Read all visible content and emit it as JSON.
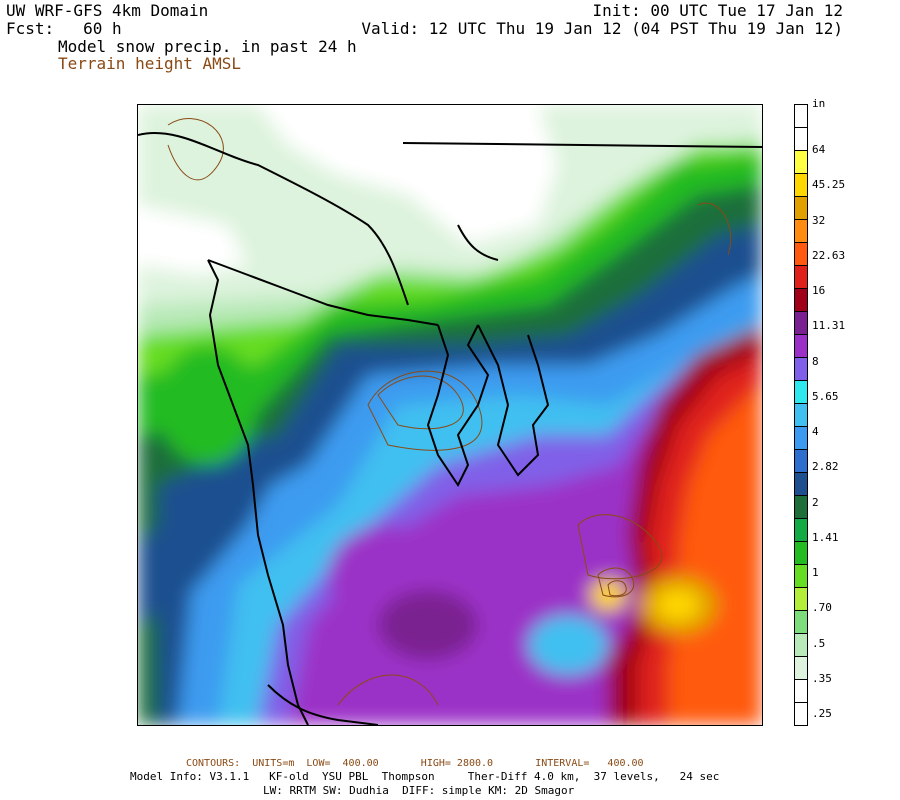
{
  "header": {
    "title": "UW WRF-GFS 4km Domain",
    "fcst": "Fcst:   60 h",
    "product": "Model snow precip. in past 24 h",
    "terrain": "Terrain height AMSL",
    "init": "Init: 00 UTC Tue 17 Jan 12",
    "valid": "Valid: 12 UTC Thu 19 Jan 12 (04 PST Thu 19 Jan 12)"
  },
  "colorbar": {
    "unit": "in",
    "labels": [
      ".25",
      ".35",
      ".5",
      ".70",
      "1",
      "1.41",
      "2",
      "2.82",
      "4",
      "5.65",
      "8",
      "11.31",
      "16",
      "22.63",
      "32",
      "45.25",
      "64"
    ],
    "colors": [
      "#ffffff",
      "#ffffff",
      "#ddf3dd",
      "#b8e9b8",
      "#7ddd7d",
      "#b3ee3a",
      "#66dd22",
      "#22bb22",
      "#11aa44",
      "#1e6e3a",
      "#1e4f8f",
      "#2d6ecf",
      "#3c9bf0",
      "#40c0f0",
      "#2ee8ee",
      "#8060e8",
      "#9b30c8",
      "#7a2090",
      "#a00018",
      "#e0201a",
      "#ff5a10",
      "#ff8c10",
      "#e0a000",
      "#ffd700",
      "#ffff44",
      "#ffffff",
      "#ffffff"
    ]
  },
  "footer": {
    "contours": "CONTOURS:  UNITS=m  LOW=  400.00       HIGH= 2800.0       INTERVAL=   400.00",
    "model_info": "Model Info: V3.1.1   KF-old  YSU PBL  Thompson     Ther-Diff 4.0 km,  37 levels,   24 sec",
    "model_info2": "LW: RRTM SW: Dudhia  DIFF: simple KM: 2D Smagor"
  }
}
